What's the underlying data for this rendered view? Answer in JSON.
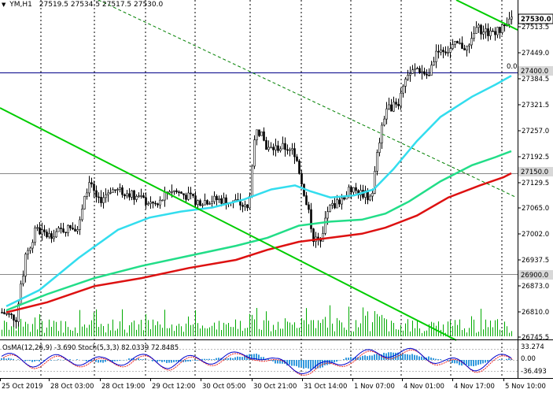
{
  "header": {
    "arrow": "▼",
    "symbol": "YM,H1",
    "ohlc": "27519.5 27534.5 27517.5 27530.0"
  },
  "price_axis": {
    "ticks": [
      "27513.5",
      "27449.0",
      "27384.5",
      "27321.5",
      "27257.0",
      "27192.5",
      "27129.5",
      "27065.0",
      "27002.0",
      "26937.5",
      "26873.0",
      "26810.0",
      "26745.5"
    ],
    "current_price_label": "27530.0",
    "level_labels": [
      "27400.0",
      "27150.0",
      "26900.0"
    ],
    "fib_label": "0.0"
  },
  "time_axis": {
    "labels": [
      "25 Oct 2019",
      "28 Oct 03:00",
      "28 Oct 19:00",
      "29 Oct 12:00",
      "30 Oct 05:00",
      "30 Oct 21:00",
      "31 Oct 14:00",
      "1 Nov 07:00",
      "4 Nov 01:00",
      "4 Nov 17:00",
      "5 Nov 10:00"
    ]
  },
  "oscillator": {
    "header": "OsMA(12,26,9) -3.690  Stoch(5,3,3) 82.0339 72.8485",
    "axis_labels": [
      "33.274",
      "0.00",
      "-36.493"
    ]
  },
  "colors": {
    "ma_fast": "#33ddee",
    "ma_mid": "#22dd88",
    "ma_slow": "#dd1111",
    "trendline": "#00cc00",
    "channel_dashed": "#008000",
    "volume": "#00aa00",
    "osma": "#3399dd",
    "stoch_main": "#0000cc",
    "stoch_signal": "#ee2222",
    "grid_vertical": "#000000"
  }
}
